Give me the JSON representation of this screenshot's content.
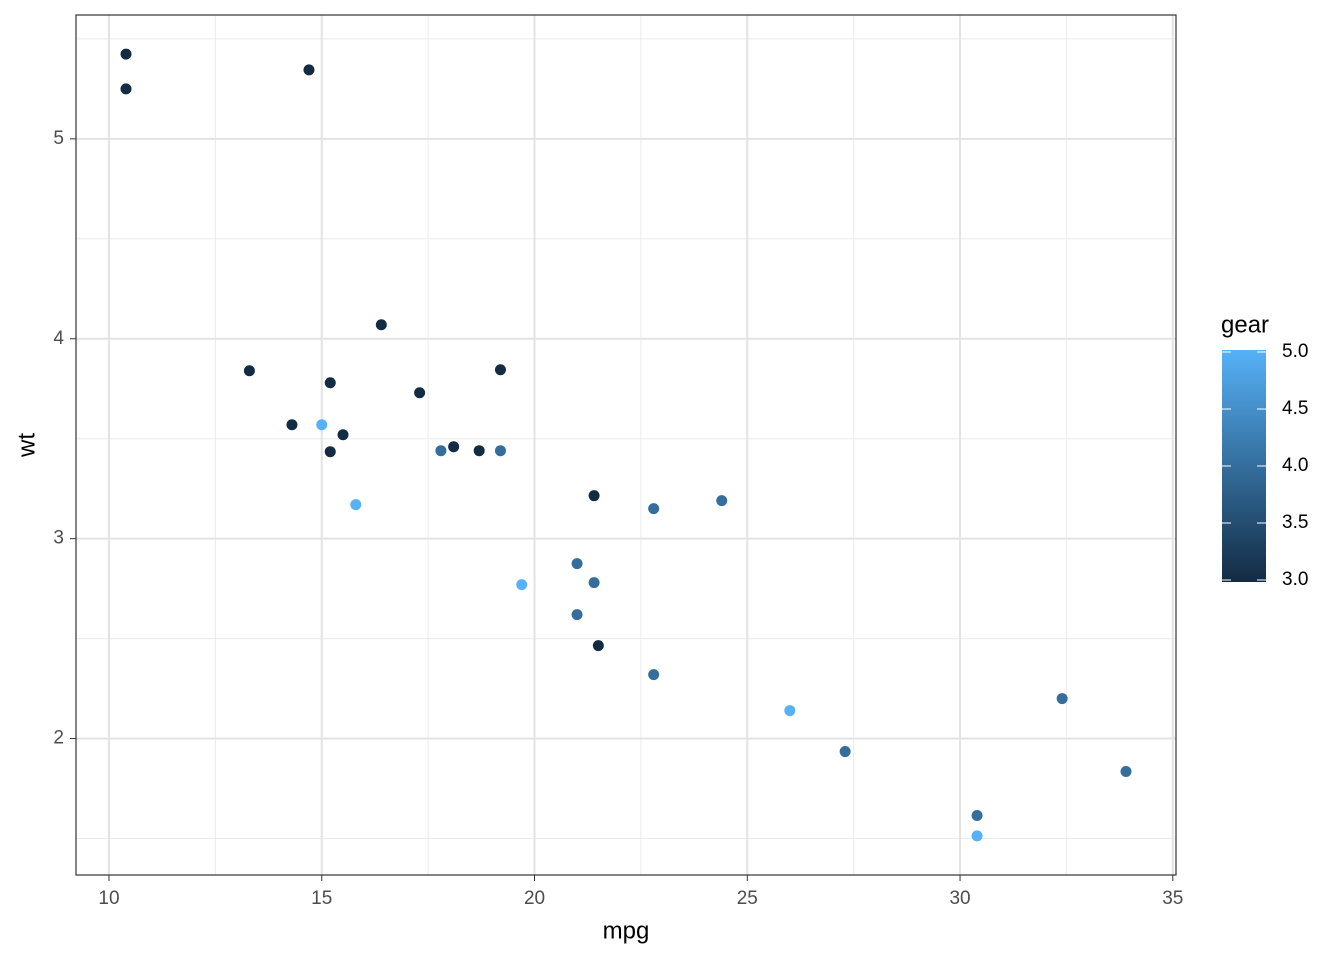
{
  "chart_data": {
    "type": "scatter",
    "x_label": "mpg",
    "y_label": "wt",
    "legend_title": "gear",
    "x": [
      21.0,
      21.0,
      22.8,
      21.4,
      18.7,
      18.1,
      14.3,
      24.4,
      22.8,
      19.2,
      17.8,
      16.4,
      17.3,
      15.2,
      10.4,
      10.4,
      14.7,
      32.4,
      30.4,
      33.9,
      21.5,
      15.5,
      15.2,
      13.3,
      19.2,
      27.3,
      26.0,
      30.4,
      15.8,
      19.7,
      15.0,
      21.4
    ],
    "y": [
      2.62,
      2.875,
      2.32,
      3.215,
      3.44,
      3.46,
      3.57,
      3.19,
      3.15,
      3.44,
      3.44,
      4.07,
      3.73,
      3.78,
      5.25,
      5.424,
      5.345,
      2.2,
      1.615,
      1.835,
      2.465,
      3.52,
      3.435,
      3.84,
      3.845,
      1.935,
      2.14,
      1.513,
      3.17,
      2.77,
      3.57,
      2.78
    ],
    "color_values": [
      4,
      4,
      4,
      3,
      3,
      3,
      3,
      4,
      4,
      4,
      4,
      3,
      3,
      3,
      3,
      3,
      3,
      4,
      4,
      4,
      3,
      3,
      3,
      3,
      3,
      4,
      5,
      5,
      5,
      5,
      5,
      4
    ],
    "color_low": "#132b43",
    "color_high": "#56b1f7",
    "color_lim": [
      3,
      5
    ],
    "color_ticks": [
      {
        "value": 3,
        "label": "3.0"
      },
      {
        "value": 3.5,
        "label": "3.5"
      },
      {
        "value": 4,
        "label": "4.0"
      },
      {
        "value": 4.5,
        "label": "4.5"
      },
      {
        "value": 5,
        "label": "5.0"
      }
    ],
    "xlim": [
      9.225,
      35.075
    ],
    "ylim": [
      1.31745,
      5.61955
    ],
    "xticks": [
      10,
      15,
      20,
      25,
      30,
      35
    ],
    "yticks": [
      2,
      3,
      4,
      5
    ],
    "x_minor_grid": [
      12.5,
      17.5,
      22.5,
      27.5,
      32.5
    ],
    "y_minor_grid": [
      1.5,
      2.5,
      3.5,
      4.5,
      5.5
    ],
    "grid": true
  }
}
